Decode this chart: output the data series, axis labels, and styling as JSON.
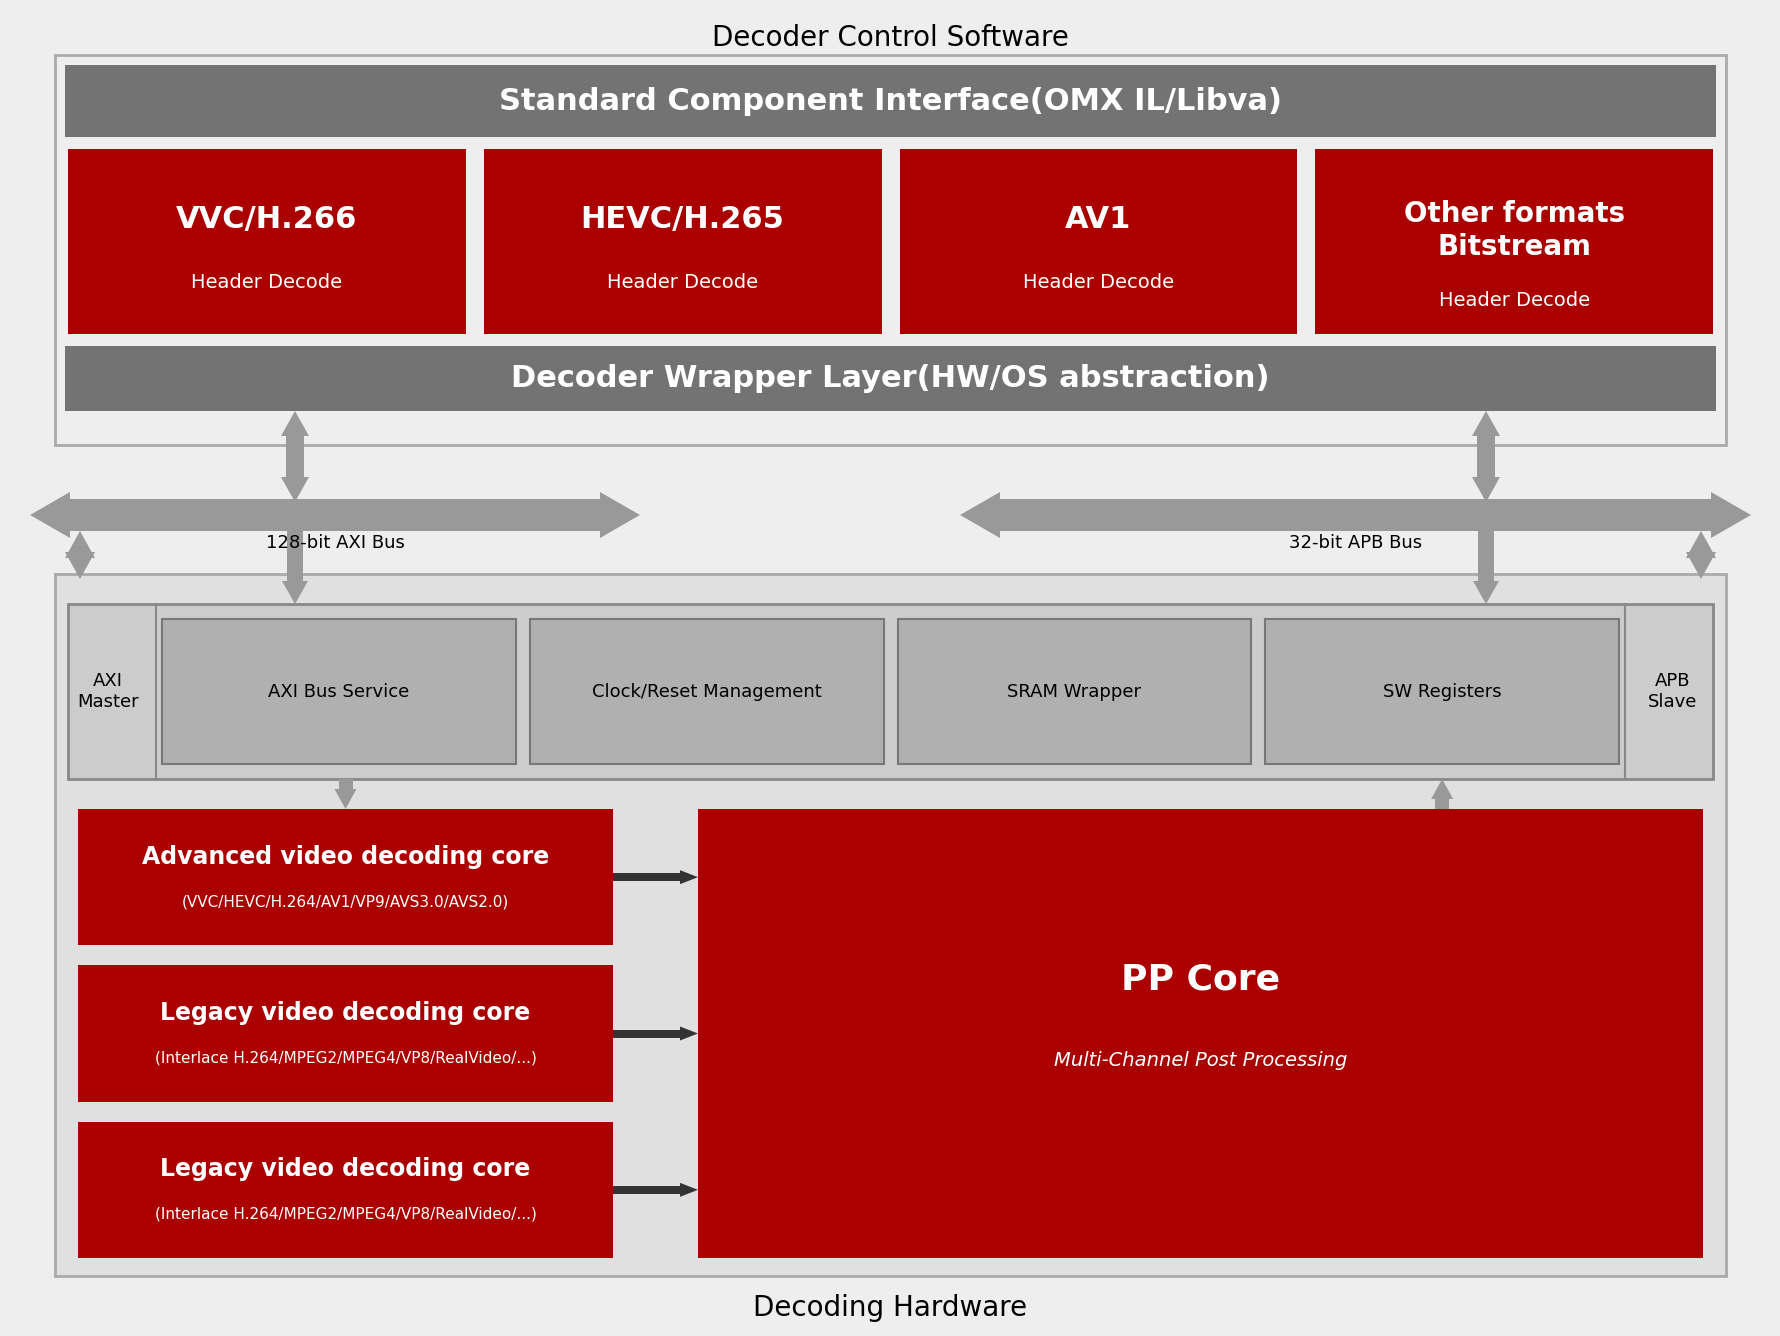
{
  "title_top": "Decoder Control Software",
  "title_bottom": "Decoding Hardware",
  "bg_color": "#eeeeee",
  "dark_gray": "#737373",
  "medium_gray": "#999999",
  "light_gray": "#bbbbbb",
  "hw_bg": "#e0e0e0",
  "inner_box_bg": "#cccccc",
  "inner_item_bg": "#b0b0b0",
  "red_dark": "#aa0000",
  "white": "#ffffff",
  "black": "#000000",
  "arrow_gray": "#999999",
  "omx_label": "Standard Component Interface(OMX IL/Libva)",
  "wrapper_label": "Decoder Wrapper Layer(HW/OS abstraction)",
  "codec_boxes": [
    {
      "label1": "VVC/H.266",
      "label2": "Header Decode"
    },
    {
      "label1": "HEVC/H.265",
      "label2": "Header Decode"
    },
    {
      "label1": "AV1",
      "label2": "Header Decode"
    },
    {
      "label1": "Other formats\nBitstream",
      "label2": "Header Decode"
    }
  ],
  "hw_inner_boxes": [
    "AXI Bus Service",
    "Clock/Reset Management",
    "SRAM Wrapper",
    "SW Registers"
  ],
  "decode_cores": [
    {
      "label1": "Advanced video decoding core",
      "label2": "(VVC/HEVC/H.264/AV1/VP9/AVS3.0/AVS2.0)"
    },
    {
      "label1": "Legacy video decoding core",
      "label2": "(Interlace H.264/MPEG2/MPEG4/VP8/RealVideo/...)"
    },
    {
      "label1": "Legacy video decoding core",
      "label2": "(Interlace H.264/MPEG2/MPEG4/VP8/RealVideo/...)"
    }
  ],
  "pp_core_label1": "PP Core",
  "pp_core_label2": "Multi-Channel Post Processing",
  "bus_labels": [
    "128-bit AXI Bus",
    "32-bit APB Bus"
  ],
  "axi_label": "AXI\nMaster",
  "apb_label": "APB\nSlave"
}
